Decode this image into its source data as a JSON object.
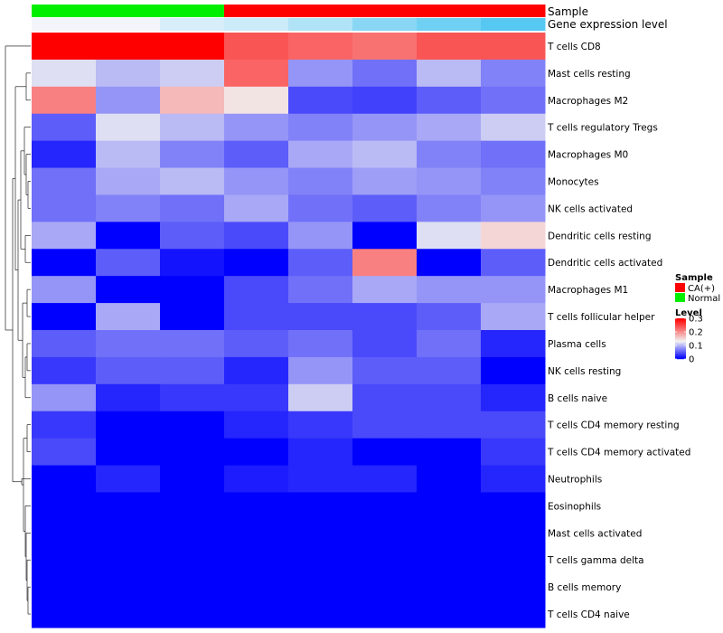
{
  "chart_data": {
    "type": "heatmap",
    "annotation_labels": {
      "sample": "Sample",
      "expression": "Gene expression level"
    },
    "columns": [
      {
        "sample": "Normal",
        "expression": 0.0
      },
      {
        "sample": "Normal",
        "expression": 0.0
      },
      {
        "sample": "Normal",
        "expression": 0.02
      },
      {
        "sample": "CA(+)",
        "expression": 0.03
      },
      {
        "sample": "CA(+)",
        "expression": 0.05
      },
      {
        "sample": "CA(+)",
        "expression": 0.08
      },
      {
        "sample": "CA(+)",
        "expression": 0.1
      },
      {
        "sample": "CA(+)",
        "expression": 0.12
      }
    ],
    "rows": [
      "T cells CD8",
      "Mast cells resting",
      "Macrophages M2",
      "T cells regulatory  Tregs",
      "Macrophages M0",
      "Monocytes",
      "NK cells activated",
      "Dendritic cells resting",
      "Dendritic cells activated",
      "Macrophages M1",
      "T cells follicular helper",
      "Plasma cells",
      "NK cells resting",
      "B cells naive",
      "T cells CD4 memory resting",
      "T cells CD4 memory activated",
      "Neutrophils",
      "Eosinophils",
      "Mast cells activated",
      "T cells gamma delta",
      "B cells memory",
      "T cells CD4 naive"
    ],
    "values": [
      [
        0.3,
        0.3,
        0.3,
        0.24,
        0.23,
        0.22,
        0.24,
        0.24
      ],
      [
        0.12,
        0.1,
        0.11,
        0.23,
        0.08,
        0.06,
        0.1,
        0.07
      ],
      [
        0.21,
        0.08,
        0.17,
        0.14,
        0.04,
        0.035,
        0.05,
        0.06
      ],
      [
        0.05,
        0.12,
        0.1,
        0.08,
        0.07,
        0.08,
        0.09,
        0.11
      ],
      [
        0.02,
        0.1,
        0.07,
        0.05,
        0.09,
        0.1,
        0.07,
        0.06
      ],
      [
        0.06,
        0.09,
        0.1,
        0.08,
        0.07,
        0.085,
        0.08,
        0.07
      ],
      [
        0.06,
        0.07,
        0.06,
        0.09,
        0.06,
        0.05,
        0.07,
        0.08
      ],
      [
        0.09,
        0.0,
        0.05,
        0.04,
        0.08,
        0.0,
        0.12,
        0.15
      ],
      [
        0.0,
        0.05,
        0.01,
        0.0,
        0.05,
        0.21,
        0.0,
        0.05
      ],
      [
        0.08,
        0.0,
        0.0,
        0.04,
        0.06,
        0.09,
        0.08,
        0.08
      ],
      [
        0.0,
        0.09,
        0.0,
        0.04,
        0.04,
        0.04,
        0.05,
        0.09
      ],
      [
        0.05,
        0.06,
        0.06,
        0.05,
        0.06,
        0.04,
        0.06,
        0.02
      ],
      [
        0.03,
        0.05,
        0.05,
        0.02,
        0.08,
        0.05,
        0.05,
        0.0
      ],
      [
        0.08,
        0.02,
        0.03,
        0.03,
        0.11,
        0.04,
        0.04,
        0.02
      ],
      [
        0.03,
        0.0,
        0.0,
        0.02,
        0.03,
        0.04,
        0.04,
        0.04
      ],
      [
        0.04,
        0.0,
        0.0,
        0.0,
        0.02,
        0.0,
        0.0,
        0.03
      ],
      [
        0.0,
        0.02,
        0.0,
        0.015,
        0.02,
        0.02,
        0.0,
        0.02
      ],
      [
        0.0,
        0.0,
        0.0,
        0.0,
        0.0,
        0.0,
        0.0,
        0.0
      ],
      [
        0.0,
        0.0,
        0.0,
        0.0,
        0.0,
        0.0,
        0.0,
        0.0
      ],
      [
        0.0,
        0.0,
        0.0,
        0.0,
        0.0,
        0.0,
        0.0,
        0.0
      ],
      [
        0.0,
        0.0,
        0.0,
        0.0,
        0.0,
        0.0,
        0.0,
        0.0
      ],
      [
        0.0,
        0.0,
        0.0,
        0.0,
        0.0,
        0.0,
        0.0,
        0.0
      ]
    ],
    "color_scale": {
      "min": 0,
      "mid": 0.13,
      "max": 0.3,
      "low": "#0000ff",
      "midcolor": "#f2f2f2",
      "high": "#ff0000"
    },
    "legend": {
      "position": "right",
      "sample_title": "Sample",
      "sample_items": [
        {
          "label": "CA(+)",
          "color": "#ff0000"
        },
        {
          "label": "Normal",
          "color": "#00ee00"
        }
      ],
      "level_title": "Level",
      "level_ticks": [
        {
          "label": "0.3",
          "value": 0.3
        },
        {
          "label": "0.2",
          "value": 0.2
        },
        {
          "label": "0.1",
          "value": 0.1
        },
        {
          "label": "0",
          "value": 0
        }
      ],
      "expression_low": "#f2f6fb",
      "expression_high": "#56c8f2"
    },
    "dendrogram": "rows"
  }
}
